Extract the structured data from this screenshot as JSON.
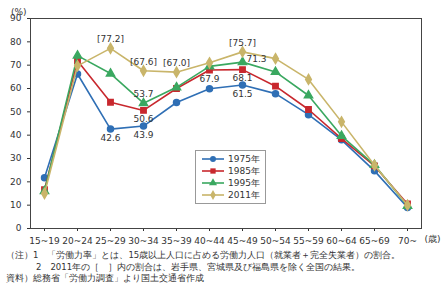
{
  "chart_data": {
    "type": "line",
    "y_label": "(%)",
    "x_label": "(歳)",
    "categories": [
      "15~19",
      "20~24",
      "25~29",
      "30~34",
      "35~39",
      "40~44",
      "45~49",
      "50~54",
      "55~59",
      "60~64",
      "65~69",
      "70~"
    ],
    "ylim": [
      0,
      90
    ],
    "yticks": [
      0,
      10,
      20,
      30,
      40,
      50,
      60,
      70,
      80,
      90
    ],
    "grid": false,
    "legend": "bottom",
    "series": [
      {
        "name": "1975年",
        "color": "#2f6fb5",
        "marker": "circle",
        "values": [
          21.7,
          66.2,
          42.6,
          43.9,
          54.0,
          59.9,
          61.5,
          57.8,
          48.8,
          38.0,
          24.7,
          9.0
        ]
      },
      {
        "name": "1985年",
        "color": "#c8282e",
        "marker": "square",
        "values": [
          16.6,
          71.9,
          54.1,
          50.6,
          60.0,
          67.9,
          68.1,
          61.0,
          51.0,
          38.5,
          26.8,
          10.5
        ]
      },
      {
        "name": "1995年",
        "color": "#3aa860",
        "marker": "triangle",
        "values": [
          16.0,
          74.1,
          66.4,
          53.7,
          60.5,
          69.5,
          71.3,
          67.1,
          57.0,
          39.7,
          27.2,
          9.7
        ]
      },
      {
        "name": "2011年",
        "color": "#c9b56a",
        "marker": "diamond",
        "values": [
          15.0,
          69.7,
          77.2,
          67.6,
          67.0,
          71.0,
          75.7,
          72.8,
          63.9,
          45.7,
          27.1,
          10.0
        ]
      }
    ],
    "annotations": [
      {
        "series": "2011年",
        "category": "25~29",
        "value": 77.2,
        "text": "[77.2]"
      },
      {
        "series": "2011年",
        "category": "30~34",
        "value": 67.6,
        "text": "[67.6]"
      },
      {
        "series": "2011年",
        "category": "35~39",
        "value": 67.0,
        "text": "[67.0]"
      },
      {
        "series": "2011年",
        "category": "45~49",
        "value": 75.7,
        "text": "[75.7]"
      },
      {
        "series": "1995年",
        "category": "30~34",
        "value": 53.7,
        "text": "53.7"
      },
      {
        "series": "1995年",
        "category": "45~49",
        "value": 71.3,
        "text": "71.3"
      },
      {
        "series": "1985年",
        "category": "40~44",
        "value": 67.9,
        "text": "67.9"
      },
      {
        "series": "1985年",
        "category": "45~49",
        "value": 68.1,
        "text": "68.1"
      },
      {
        "series": "1985年",
        "category": "30~34",
        "value": 50.6,
        "text": "50.6"
      },
      {
        "series": "1975年",
        "category": "25~29",
        "value": 42.6,
        "text": "42.6"
      },
      {
        "series": "1975年",
        "category": "30~34",
        "value": 43.9,
        "text": "43.9"
      },
      {
        "series": "1975年",
        "category": "45~49",
        "value": 61.5,
        "text": "61.5"
      }
    ],
    "notes": [
      "（注）1　「労働力率」とは、15歳以上人口に占める労働力人口（就業者＋完全失業者）の割合。",
      "2　2011年の［　］内の割合は、岩手県、宮城県及び福島県を除く全国の結果。"
    ],
    "source": "資料）総務省「労働力調査」より国土交通省作成"
  }
}
